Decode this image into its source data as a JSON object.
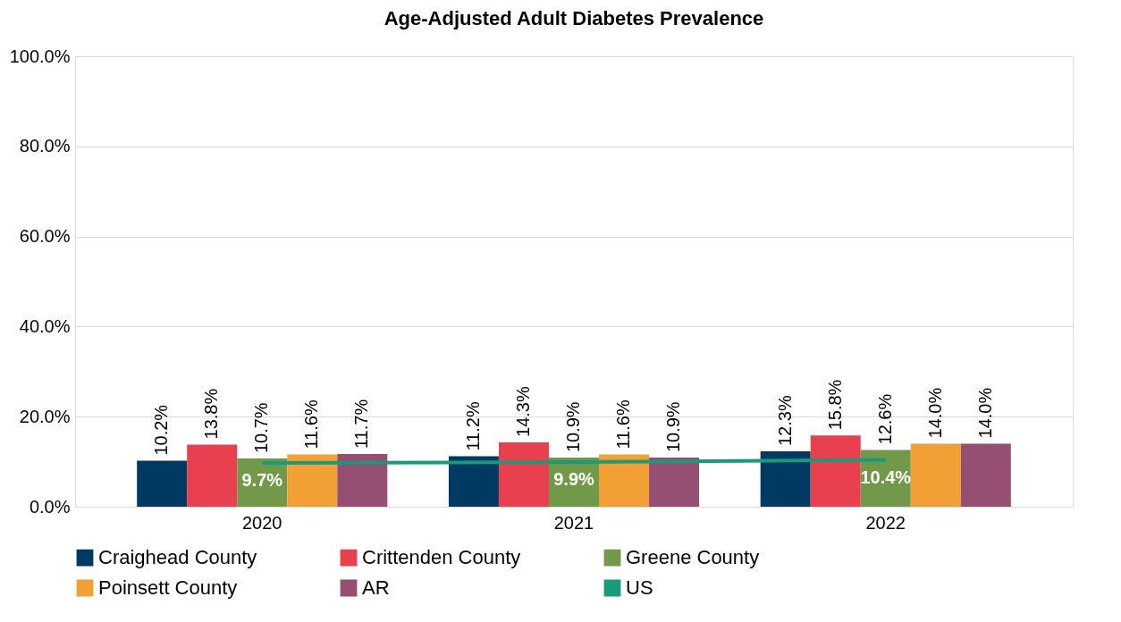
{
  "chart_data": {
    "type": "bar",
    "title": "Age-Adjusted Adult Diabetes Prevalence",
    "categories": [
      "2020",
      "2021",
      "2022"
    ],
    "series": [
      {
        "name": "Craighead County",
        "color": "#003a63",
        "values": [
          10.2,
          11.2,
          12.3
        ],
        "value_labels": [
          "10.2%",
          "11.2%",
          "12.3%"
        ]
      },
      {
        "name": "Crittenden County",
        "color": "#e8404e",
        "values": [
          13.8,
          14.3,
          15.8
        ],
        "value_labels": [
          "13.8%",
          "14.3%",
          "15.8%"
        ]
      },
      {
        "name": "Greene County",
        "color": "#72994a",
        "values": [
          10.7,
          10.9,
          12.6
        ],
        "value_labels": [
          "10.7%",
          "10.9%",
          "12.6%"
        ]
      },
      {
        "name": "Poinsett County",
        "color": "#f0a035",
        "values": [
          11.6,
          11.6,
          14.0
        ],
        "value_labels": [
          "11.6%",
          "11.6%",
          "14.0%"
        ]
      },
      {
        "name": "AR",
        "color": "#954f72",
        "values": [
          11.7,
          10.9,
          14.0
        ],
        "value_labels": [
          "11.7%",
          "10.9%",
          "14.0%"
        ]
      },
      {
        "name": "US",
        "type": "line",
        "color": "#1a9a7a",
        "values": [
          9.7,
          9.9,
          10.4
        ],
        "value_labels": [
          "9.7%",
          "9.9%",
          "10.4%"
        ]
      }
    ],
    "ylim": [
      0,
      100
    ],
    "yticks": [
      {
        "value": 0,
        "label": "0.0%"
      },
      {
        "value": 20,
        "label": "20.0%"
      },
      {
        "value": 40,
        "label": "40.0%"
      },
      {
        "value": 60,
        "label": "60.0%"
      },
      {
        "value": 80,
        "label": "80.0%"
      },
      {
        "value": 100,
        "label": "100.0%"
      }
    ],
    "grid": "y",
    "legend": "bottom"
  }
}
